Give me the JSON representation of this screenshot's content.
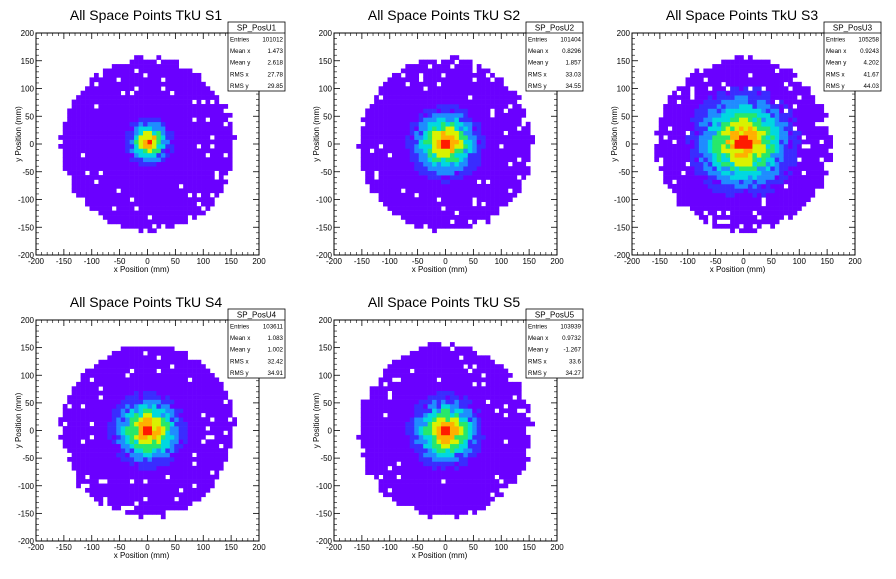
{
  "chart_data": [
    {
      "type": "heatmap",
      "title": "All Space Points TkU S1",
      "xlabel": "x Position (mm)",
      "ylabel": "y Position (mm)",
      "xlim": [
        -200,
        200
      ],
      "ylim": [
        -200,
        200
      ],
      "xticks": [
        -200,
        -150,
        -100,
        -50,
        0,
        50,
        100,
        150,
        200
      ],
      "yticks": [
        -200,
        -150,
        -100,
        -50,
        0,
        50,
        100,
        150,
        200
      ],
      "center": [
        3,
        4
      ],
      "core_sigma": 14,
      "halo_radius": 155,
      "stats": {
        "name": "SP_PosU1",
        "rows": [
          {
            "label": "Entries",
            "value": "101012"
          },
          {
            "label": "Mean x",
            "value": "1.473"
          },
          {
            "label": "Mean y",
            "value": "2.618"
          },
          {
            "label": "RMS x",
            "value": "27.78"
          },
          {
            "label": "RMS y",
            "value": "29.85"
          }
        ]
      }
    },
    {
      "type": "heatmap",
      "title": "All Space Points TkU S2",
      "xlabel": "x Position (mm)",
      "ylabel": "y Position (mm)",
      "xlim": [
        -200,
        200
      ],
      "ylim": [
        -200,
        200
      ],
      "xticks": [
        -200,
        -150,
        -100,
        -50,
        0,
        50,
        100,
        150,
        200
      ],
      "yticks": [
        -200,
        -150,
        -100,
        -50,
        0,
        50,
        100,
        150,
        200
      ],
      "center": [
        1,
        2
      ],
      "core_sigma": 22,
      "halo_radius": 155,
      "stats": {
        "name": "SP_PosU2",
        "rows": [
          {
            "label": "Entries",
            "value": "101404"
          },
          {
            "label": "Mean x",
            "value": "0.8296"
          },
          {
            "label": "Mean y",
            "value": "1.857"
          },
          {
            "label": "RMS x",
            "value": "33.03"
          },
          {
            "label": "RMS y",
            "value": "34.55"
          }
        ]
      }
    },
    {
      "type": "heatmap",
      "title": "All Space Points TkU S3",
      "xlabel": "x Position (mm)",
      "ylabel": "y Position (mm)",
      "xlim": [
        -200,
        200
      ],
      "ylim": [
        -200,
        200
      ],
      "xticks": [
        -200,
        -150,
        -100,
        -50,
        0,
        50,
        100,
        150,
        200
      ],
      "yticks": [
        -200,
        -150,
        -100,
        -50,
        0,
        50,
        100,
        150,
        200
      ],
      "center": [
        0,
        3
      ],
      "core_sigma": 32,
      "halo_radius": 155,
      "stats": {
        "name": "SP_PosU3",
        "rows": [
          {
            "label": "Entries",
            "value": "105258"
          },
          {
            "label": "Mean x",
            "value": "0.9243"
          },
          {
            "label": "Mean y",
            "value": "4.202"
          },
          {
            "label": "RMS x",
            "value": "41.67"
          },
          {
            "label": "RMS y",
            "value": "44.03"
          }
        ]
      }
    },
    {
      "type": "heatmap",
      "title": "All Space Points TkU S4",
      "xlabel": "x Position (mm)",
      "ylabel": "y Position (mm)",
      "xlim": [
        -200,
        200
      ],
      "ylim": [
        -200,
        200
      ],
      "xticks": [
        -200,
        -150,
        -100,
        -50,
        0,
        50,
        100,
        150,
        200
      ],
      "yticks": [
        -200,
        -150,
        -100,
        -50,
        0,
        50,
        100,
        150,
        200
      ],
      "center": [
        1,
        1
      ],
      "core_sigma": 22,
      "halo_radius": 155,
      "stats": {
        "name": "SP_PosU4",
        "rows": [
          {
            "label": "Entries",
            "value": "103611"
          },
          {
            "label": "Mean x",
            "value": "1.083"
          },
          {
            "label": "Mean y",
            "value": "1.002"
          },
          {
            "label": "RMS x",
            "value": "32.42"
          },
          {
            "label": "RMS y",
            "value": "34.91"
          }
        ]
      }
    },
    {
      "type": "heatmap",
      "title": "All Space Points TkU S5",
      "xlabel": "x Position (mm)",
      "ylabel": "y Position (mm)",
      "xlim": [
        -200,
        200
      ],
      "ylim": [
        -200,
        200
      ],
      "xticks": [
        -200,
        -150,
        -100,
        -50,
        0,
        50,
        100,
        150,
        200
      ],
      "yticks": [
        -200,
        -150,
        -100,
        -50,
        0,
        50,
        100,
        150,
        200
      ],
      "center": [
        1,
        -1
      ],
      "core_sigma": 22,
      "halo_radius": 155,
      "stats": {
        "name": "SP_PosU5",
        "rows": [
          {
            "label": "Entries",
            "value": "103939"
          },
          {
            "label": "Mean x",
            "value": "0.9732"
          },
          {
            "label": "Mean y",
            "value": "-1.267"
          },
          {
            "label": "RMS x",
            "value": "33.6"
          },
          {
            "label": "RMS y",
            "value": "34.27"
          }
        ]
      }
    }
  ],
  "colors": {
    "background": "#ffffff",
    "axis": "#000000",
    "halo": "#6f00ff",
    "palette": [
      "#6a00ff",
      "#3a2cff",
      "#1f8cff",
      "#00d8e0",
      "#27e86a",
      "#d9f200",
      "#ffb000",
      "#ff1a00"
    ]
  }
}
